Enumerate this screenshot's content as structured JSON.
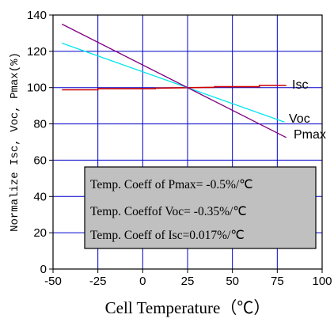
{
  "chart_data": {
    "type": "line",
    "title": "",
    "xlabel": "Cell Temperature（℃）",
    "ylabel": "Normalize Isc, Voc, Pmax(%)",
    "xlim": [
      -50,
      100
    ],
    "ylim": [
      0,
      140
    ],
    "xticks": [
      "-50",
      "-25",
      "0",
      "25",
      "50",
      "75",
      "100"
    ],
    "yticks": [
      "0",
      "20",
      "40",
      "60",
      "80",
      "100",
      "120",
      "140"
    ],
    "grid": true,
    "series": [
      {
        "name": "Isc",
        "color": "#cc0000",
        "points": [
          [
            -45,
            98.8
          ],
          [
            -25,
            98.8
          ],
          [
            -25,
            99.4
          ],
          [
            7,
            99.4
          ],
          [
            7,
            99.7
          ],
          [
            40,
            100.2
          ],
          [
            40,
            100.5
          ],
          [
            65,
            100.5
          ],
          [
            65,
            101.2
          ],
          [
            80,
            101.2
          ]
        ]
      },
      {
        "name": "Voc",
        "color": "#00e5ee",
        "points": [
          [
            -45,
            124.5
          ],
          [
            79,
            81
          ]
        ]
      },
      {
        "name": "Pmax",
        "color": "#800080",
        "points": [
          [
            -45,
            135
          ],
          [
            80,
            72.5
          ]
        ]
      }
    ],
    "annotations": [
      "Temp. Coeff of Pmax= -0.5%/℃",
      "Temp. Coeffof Voc= -0.35%/℃",
      "Temp. Coeff of Isc=0.017%/℃"
    ]
  }
}
